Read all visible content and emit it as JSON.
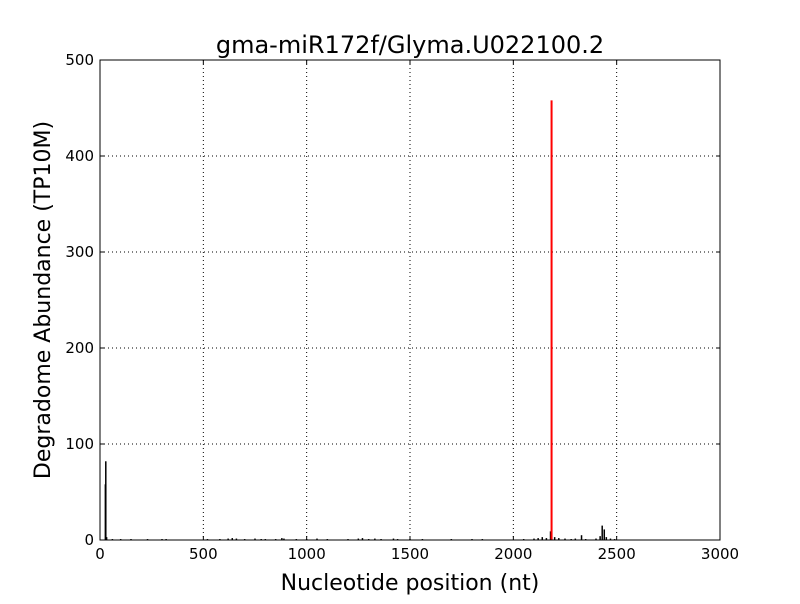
{
  "chart_data": {
    "type": "bar",
    "title": "gma-miR172f/Glyma.U022100.2",
    "xlabel": "Nucleotide position (nt)",
    "ylabel": "Degradome Abundance (TP10M)",
    "xlim": [
      0,
      3000
    ],
    "ylim": [
      0,
      500
    ],
    "xticks": [
      "0",
      "500",
      "1000",
      "1500",
      "2000",
      "2500",
      "3000"
    ],
    "yticks": [
      "0",
      "100",
      "200",
      "300",
      "400",
      "500"
    ],
    "grid": true,
    "series": [
      {
        "color": "#000000",
        "points": [
          [
            26,
            58
          ],
          [
            28,
            82
          ],
          [
            32,
            3
          ],
          [
            60,
            1
          ],
          [
            100,
            1
          ],
          [
            150,
            1
          ],
          [
            230,
            1
          ],
          [
            300,
            1
          ],
          [
            320,
            1
          ],
          [
            520,
            1
          ],
          [
            580,
            1
          ],
          [
            620,
            1.5
          ],
          [
            640,
            2
          ],
          [
            660,
            1.5
          ],
          [
            700,
            1
          ],
          [
            750,
            1.5
          ],
          [
            780,
            1
          ],
          [
            800,
            1
          ],
          [
            850,
            1
          ],
          [
            880,
            2
          ],
          [
            890,
            1.5
          ],
          [
            950,
            1
          ],
          [
            1000,
            1
          ],
          [
            1050,
            1.5
          ],
          [
            1100,
            1
          ],
          [
            1200,
            1
          ],
          [
            1250,
            1.5
          ],
          [
            1270,
            2
          ],
          [
            1300,
            1
          ],
          [
            1330,
            1.5
          ],
          [
            1360,
            1
          ],
          [
            1420,
            1.5
          ],
          [
            1440,
            1
          ],
          [
            1500,
            1
          ],
          [
            1560,
            1
          ],
          [
            1700,
            1
          ],
          [
            1800,
            1
          ],
          [
            1850,
            1
          ],
          [
            2050,
            1
          ],
          [
            2100,
            1.5
          ],
          [
            2120,
            2
          ],
          [
            2140,
            3
          ],
          [
            2160,
            2
          ],
          [
            2180,
            9
          ],
          [
            2200,
            3
          ],
          [
            2220,
            2
          ],
          [
            2250,
            1.5
          ],
          [
            2280,
            1
          ],
          [
            2300,
            1.5
          ],
          [
            2330,
            5
          ],
          [
            2350,
            1
          ],
          [
            2400,
            1.5
          ],
          [
            2420,
            4
          ],
          [
            2430,
            15
          ],
          [
            2440,
            11
          ],
          [
            2450,
            3
          ],
          [
            2470,
            1.5
          ],
          [
            2490,
            1
          ]
        ]
      },
      {
        "color": "#ff0000",
        "points": [
          [
            2185,
            458
          ]
        ]
      }
    ]
  }
}
